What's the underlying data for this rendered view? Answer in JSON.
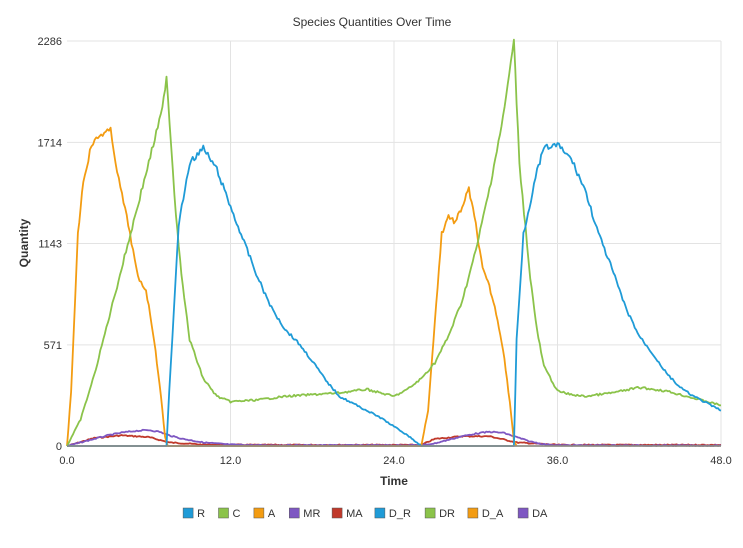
{
  "chart_data": {
    "type": "line",
    "title": "Species Quantities Over Time",
    "xlabel": "Time",
    "ylabel": "Quantity",
    "xlim": [
      0,
      48
    ],
    "ylim": [
      0,
      2286
    ],
    "x_ticks": [
      0,
      12,
      24,
      36,
      48
    ],
    "x_tick_labels": [
      "0.0",
      "12.0",
      "24.0",
      "36.0",
      "48.0"
    ],
    "y_ticks": [
      0,
      571,
      1143,
      1714,
      2286
    ],
    "y_tick_labels": [
      "0",
      "571",
      "1143",
      "1714",
      "2286"
    ],
    "grid": true,
    "legend_position": "bottom",
    "series": [
      {
        "name": "R",
        "color": "#1f9bd7",
        "x": [
          0,
          48
        ],
        "y": [
          0,
          0
        ]
      },
      {
        "name": "C",
        "color": "#8bc34a",
        "x": [
          0,
          48
        ],
        "y": [
          0,
          0
        ]
      },
      {
        "name": "A",
        "color": "#f39c12",
        "x": [
          0,
          48
        ],
        "y": [
          0,
          0
        ]
      },
      {
        "name": "MR",
        "color": "#7e57c2",
        "x": [
          0,
          48
        ],
        "y": [
          0,
          0
        ]
      },
      {
        "name": "MA",
        "color": "#c0392b",
        "x": [
          0,
          2,
          4,
          6,
          7.5,
          10,
          14,
          20,
          26,
          27,
          29,
          31,
          33,
          36,
          42,
          48
        ],
        "y": [
          0,
          45,
          60,
          50,
          20,
          8,
          6,
          6,
          6,
          40,
          55,
          55,
          20,
          6,
          6,
          6
        ]
      },
      {
        "name": "D_R",
        "color": "#1f9bd7",
        "x": [
          0,
          7.3,
          7.5,
          8.2,
          9,
          10,
          11,
          12,
          13,
          14,
          15,
          16,
          17,
          18,
          19,
          20,
          21,
          22,
          23,
          24,
          25,
          25.5,
          26,
          32.8,
          33,
          33.5,
          34.5,
          35,
          36,
          37,
          38,
          39,
          40,
          41,
          42,
          43,
          44,
          45,
          46,
          47,
          48
        ],
        "y": [
          0,
          0,
          300,
          1250,
          1600,
          1680,
          1560,
          1350,
          1150,
          950,
          780,
          660,
          580,
          480,
          370,
          280,
          240,
          200,
          160,
          110,
          60,
          30,
          0,
          0,
          600,
          1200,
          1550,
          1680,
          1700,
          1620,
          1450,
          1200,
          1000,
          780,
          620,
          520,
          410,
          330,
          280,
          240,
          200
        ]
      },
      {
        "name": "DR",
        "color": "#8bc34a",
        "x": [
          0,
          1,
          2,
          3,
          4,
          5,
          6,
          7,
          7.3,
          8,
          8.5,
          9,
          10,
          11,
          12,
          14,
          16,
          18,
          20,
          22,
          24,
          25,
          26,
          27,
          28,
          29,
          30,
          31,
          32,
          32.8,
          33.2,
          34,
          34.5,
          35,
          36,
          37,
          38,
          40,
          42,
          44,
          46,
          48
        ],
        "y": [
          0,
          150,
          400,
          700,
          1000,
          1300,
          1600,
          1900,
          2090,
          1300,
          900,
          600,
          380,
          280,
          250,
          260,
          280,
          290,
          300,
          320,
          280,
          320,
          380,
          470,
          620,
          820,
          1100,
          1450,
          1850,
          2286,
          1600,
          950,
          650,
          450,
          310,
          290,
          280,
          300,
          330,
          310,
          270,
          230
        ]
      },
      {
        "name": "D_A",
        "color": "#f39c12",
        "x": [
          0,
          0.3,
          0.8,
          1.2,
          1.8,
          2.5,
          3.2,
          3.8,
          4.5,
          5.2,
          5.8,
          6.3,
          6.8,
          7.2,
          7.4,
          26,
          26.5,
          27,
          27.5,
          28,
          28.5,
          29,
          29.5,
          30,
          30.5,
          31,
          31.5,
          32,
          32.5,
          32.8,
          33
        ],
        "y": [
          0,
          300,
          1200,
          1500,
          1700,
          1760,
          1780,
          1500,
          1250,
          950,
          880,
          650,
          350,
          50,
          0,
          0,
          200,
          700,
          1200,
          1300,
          1260,
          1350,
          1450,
          1250,
          1000,
          900,
          750,
          550,
          250,
          30,
          0
        ]
      },
      {
        "name": "DA",
        "color": "#7e57c2",
        "x": [
          0,
          1,
          2,
          3,
          4,
          5,
          6,
          6.8,
          7.5,
          8.5,
          10,
          12,
          14,
          26,
          27,
          28,
          29,
          30,
          31,
          32,
          33,
          34,
          35,
          36,
          48
        ],
        "y": [
          0,
          20,
          40,
          60,
          75,
          85,
          90,
          80,
          60,
          40,
          20,
          8,
          4,
          4,
          15,
          35,
          55,
          70,
          80,
          75,
          50,
          25,
          10,
          4,
          2
        ]
      }
    ]
  }
}
